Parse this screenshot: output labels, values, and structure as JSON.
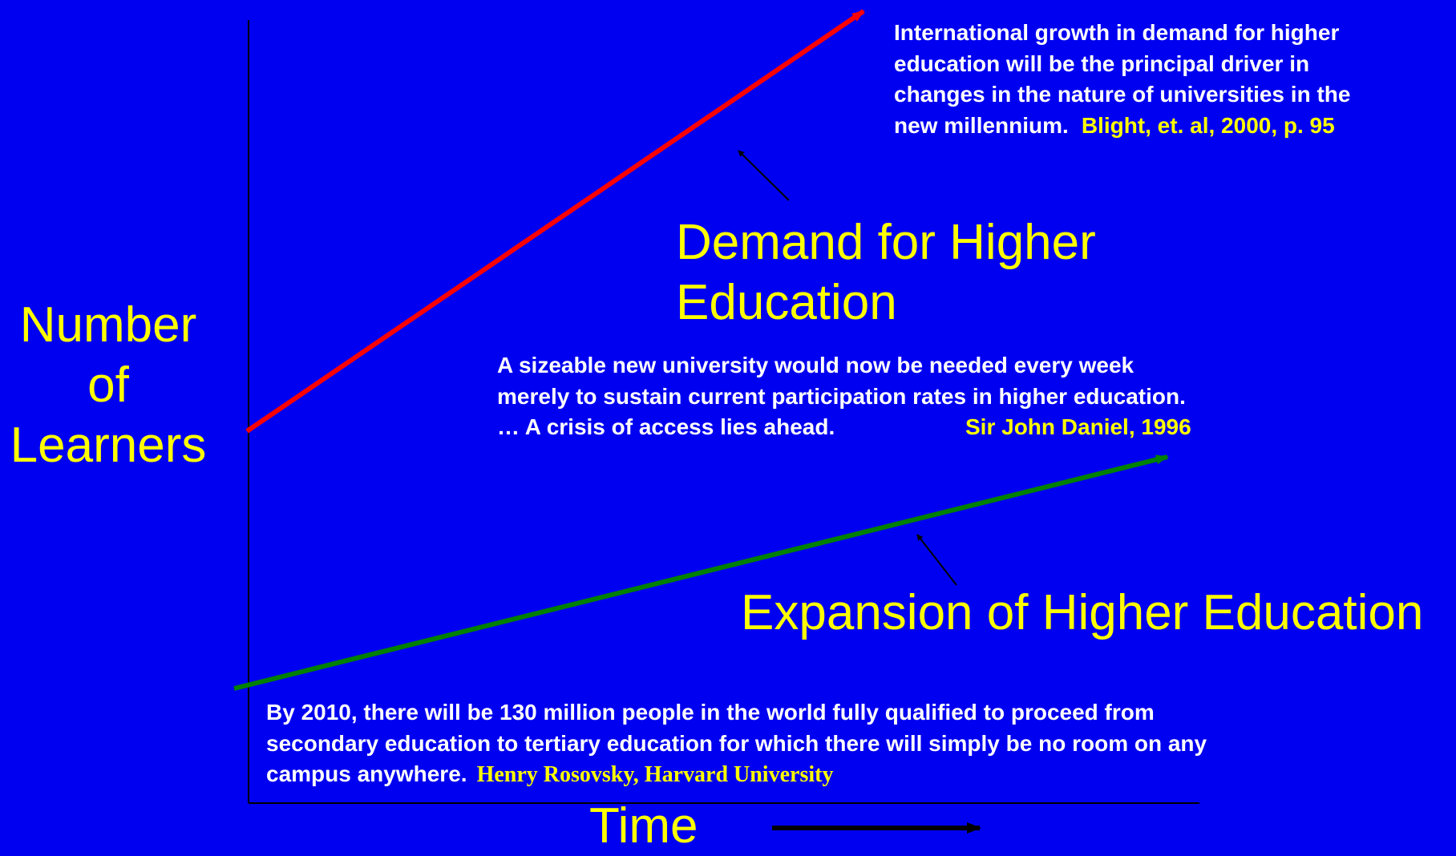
{
  "axes": {
    "y_label": [
      "Number",
      "of",
      "Learners"
    ],
    "x_label": "Time"
  },
  "demand": {
    "label": [
      "Demand for Higher",
      "Education"
    ],
    "quote": [
      "International growth in demand for higher",
      "education will be the principal driver in",
      "changes in the nature of universities in the",
      "new millennium."
    ],
    "source": "Blight, et. al, 2000, p. 95"
  },
  "expansion": {
    "label": "Expansion of Higher Education"
  },
  "daniel": {
    "quote": [
      "A sizeable new university would now be needed every week",
      "merely to sustain current participation rates in higher education.",
      "… A crisis of access lies ahead."
    ],
    "source": "Sir John Daniel, 1996"
  },
  "rosovsky": {
    "quote": [
      "By 2010, there will be 130 million people in the world fully qualified to proceed from",
      "secondary education to tertiary education for which there will simply be no room on any",
      "campus anywhere."
    ],
    "source": "Henry Rosovsky, Harvard University"
  }
}
